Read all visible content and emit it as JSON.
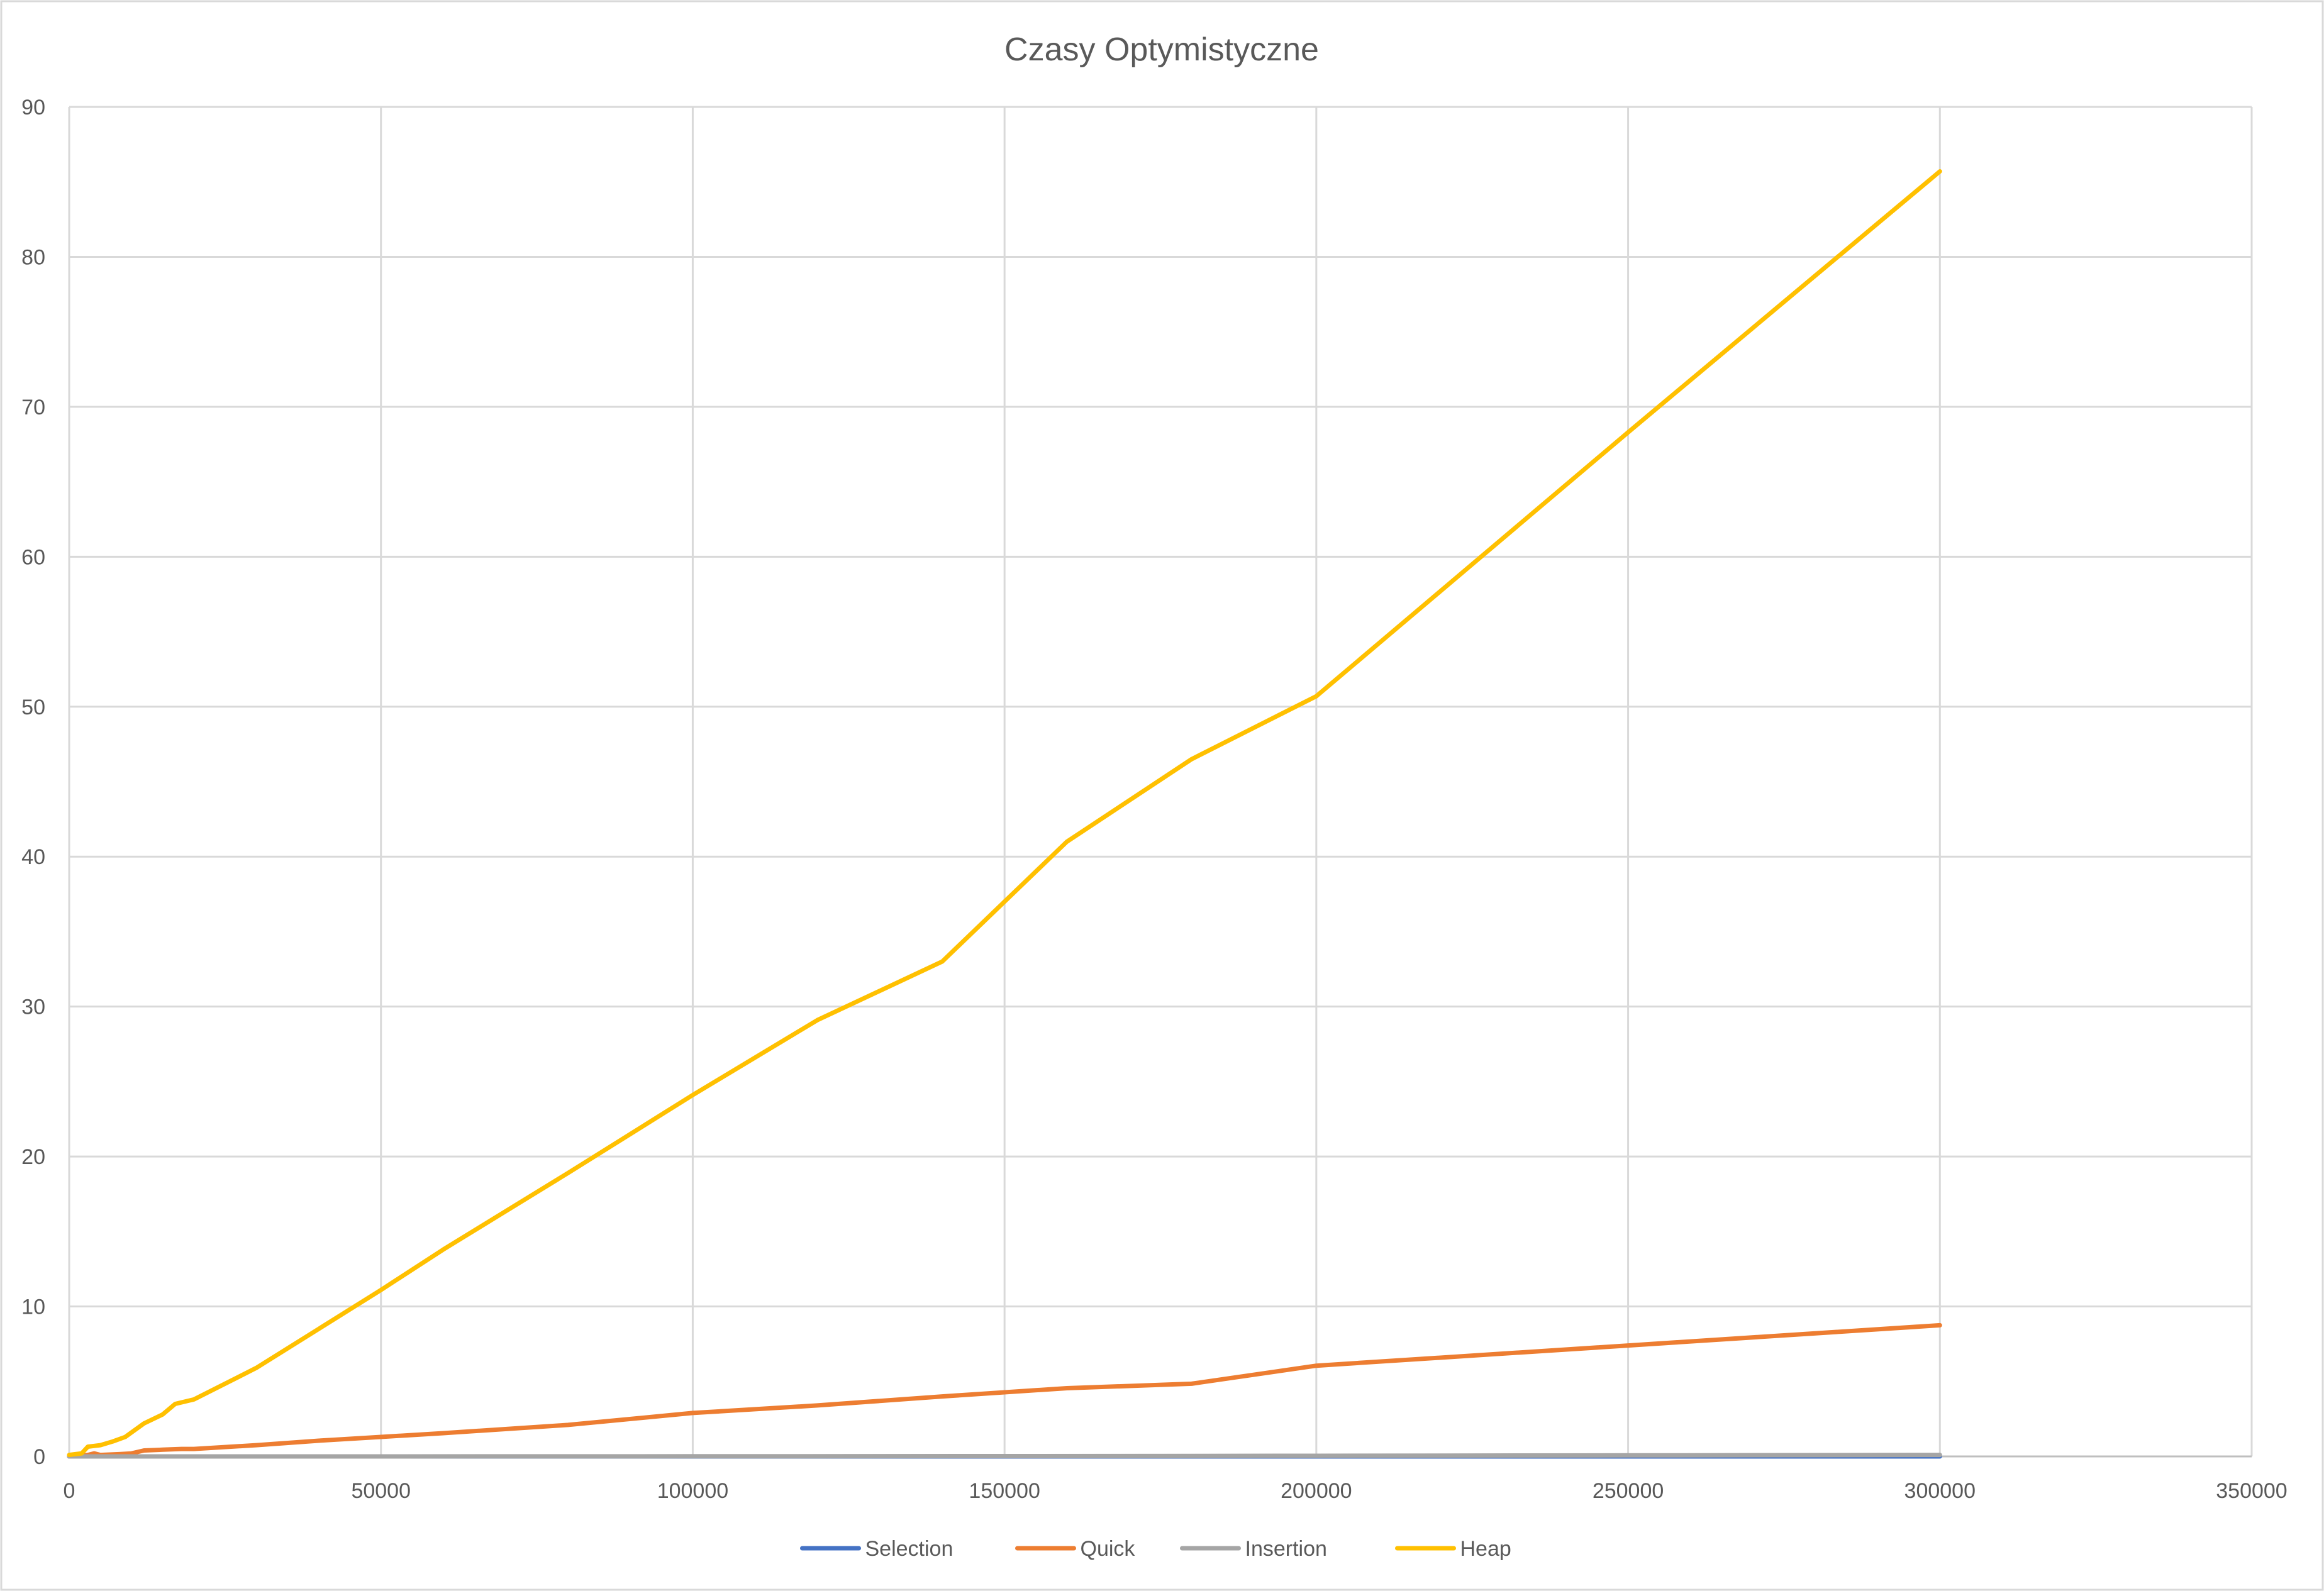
{
  "chart_data": {
    "type": "line",
    "title": "Czasy Optymistyczne",
    "xlabel": "",
    "ylabel": "",
    "xlim": [
      0,
      350000
    ],
    "ylim": [
      0,
      90
    ],
    "x_ticks": [
      0,
      50000,
      100000,
      150000,
      200000,
      250000,
      300000,
      350000
    ],
    "y_ticks": [
      0,
      10,
      20,
      30,
      40,
      50,
      60,
      70,
      80,
      90
    ],
    "x_tick_labels": [
      "0",
      "50000",
      "100000",
      "150000",
      "200000",
      "250000",
      "300000",
      "350000"
    ],
    "y_tick_labels": [
      "0",
      "10",
      "20",
      "30",
      "40",
      "50",
      "60",
      "70",
      "80",
      "90"
    ],
    "grid": true,
    "legend_position": "bottom",
    "series": [
      {
        "name": "Selection",
        "color": "#4472C4",
        "points": [
          [
            0,
            0
          ],
          [
            1000,
            0
          ],
          [
            2000,
            0
          ],
          [
            3000,
            0
          ],
          [
            4000,
            0
          ],
          [
            5000,
            0
          ],
          [
            10000,
            0
          ],
          [
            20000,
            0
          ],
          [
            50000,
            0
          ],
          [
            100000,
            0
          ],
          [
            150000,
            0
          ],
          [
            200000,
            0
          ],
          [
            250000,
            0
          ],
          [
            300000,
            0
          ]
        ]
      },
      {
        "name": "Quick",
        "color": "#ED7D31",
        "points": [
          [
            0,
            0
          ],
          [
            2000,
            0.05
          ],
          [
            3000,
            0.1
          ],
          [
            4000,
            0.2
          ],
          [
            5000,
            0.1
          ],
          [
            8000,
            0.15
          ],
          [
            10000,
            0.2
          ],
          [
            12000,
            0.4
          ],
          [
            15000,
            0.45
          ],
          [
            18000,
            0.5
          ],
          [
            20000,
            0.5
          ],
          [
            30000,
            0.75
          ],
          [
            40000,
            1.05
          ],
          [
            50000,
            1.3
          ],
          [
            60000,
            1.55
          ],
          [
            80000,
            2.1
          ],
          [
            100000,
            2.9
          ],
          [
            120000,
            3.4
          ],
          [
            140000,
            4.0
          ],
          [
            160000,
            4.55
          ],
          [
            180000,
            4.85
          ],
          [
            200000,
            6.05
          ],
          [
            250000,
            7.4
          ],
          [
            300000,
            8.75
          ]
        ]
      },
      {
        "name": "Insertion",
        "color": "#A5A5A5",
        "points": [
          [
            0,
            0
          ],
          [
            5000,
            0
          ],
          [
            10000,
            0
          ],
          [
            50000,
            0
          ],
          [
            100000,
            0.01
          ],
          [
            150000,
            0.02
          ],
          [
            200000,
            0.04
          ],
          [
            250000,
            0.07
          ],
          [
            300000,
            0.1
          ]
        ]
      },
      {
        "name": "Heap",
        "color": "#FFC000",
        "points": [
          [
            0,
            0.1
          ],
          [
            1000,
            0.15
          ],
          [
            2000,
            0.2
          ],
          [
            3000,
            0.65
          ],
          [
            4000,
            0.7
          ],
          [
            5000,
            0.75
          ],
          [
            7000,
            1.0
          ],
          [
            9000,
            1.3
          ],
          [
            12000,
            2.2
          ],
          [
            15000,
            2.8
          ],
          [
            17000,
            3.5
          ],
          [
            20000,
            3.8
          ],
          [
            30000,
            5.9
          ],
          [
            40000,
            8.5
          ],
          [
            50000,
            11.1
          ],
          [
            60000,
            13.8
          ],
          [
            80000,
            18.9
          ],
          [
            100000,
            24.1
          ],
          [
            120000,
            29.1
          ],
          [
            140000,
            33.0
          ],
          [
            160000,
            41.0
          ],
          [
            180000,
            46.5
          ],
          [
            200000,
            50.7
          ],
          [
            250000,
            68.3
          ],
          [
            300000,
            85.7
          ]
        ]
      }
    ]
  }
}
